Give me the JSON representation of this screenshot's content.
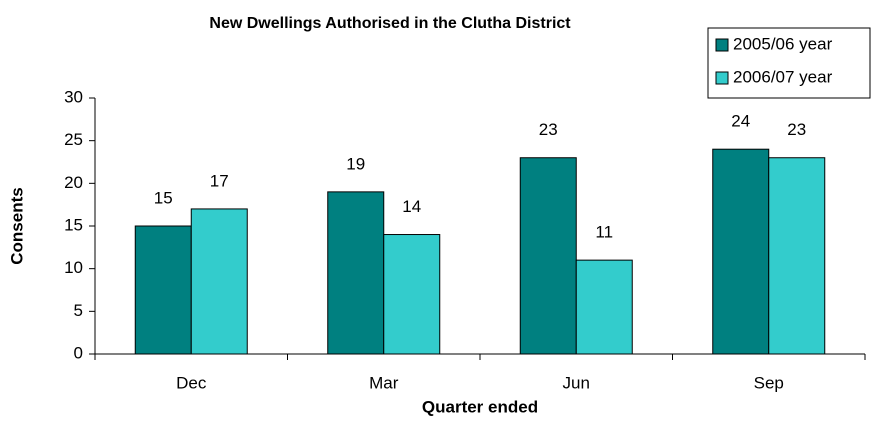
{
  "chart_data": {
    "type": "bar",
    "title": "New Dwellings Authorised in the Clutha District",
    "x_label": "Quarter ended",
    "y_label": "Consents",
    "categories": [
      "Dec",
      "Mar",
      "Jun",
      "Sep"
    ],
    "series": [
      {
        "name": "2005/06 year",
        "color": "#008080",
        "values": [
          15,
          19,
          23,
          24
        ]
      },
      {
        "name": "2006/07 year",
        "color": "#33cccc",
        "values": [
          17,
          14,
          11,
          23
        ]
      }
    ],
    "ylim": [
      0,
      30
    ],
    "yticks": [
      0,
      5,
      10,
      15,
      20,
      25,
      30
    ],
    "legend": "upper right"
  }
}
